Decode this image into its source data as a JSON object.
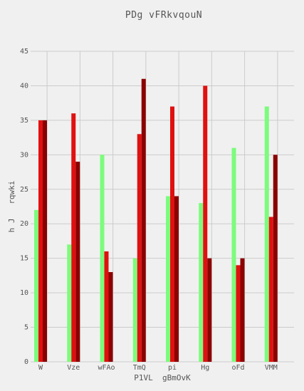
{
  "chart_data": {
    "type": "bar",
    "title": "PDg vFRkvqouN",
    "xlabel": "P1VL  gBmOvK",
    "ylabel": "h J   rqwki",
    "categories": [
      "W",
      "Vze",
      "wFAo",
      "TmQ",
      "pi",
      "Hg",
      "oFd",
      "VMM"
    ],
    "series": [
      {
        "color": "#7cfc7c",
        "values": [
          22,
          17,
          30,
          15,
          24,
          23,
          31,
          37
        ]
      },
      {
        "color": "#e01010",
        "values": [
          35,
          36,
          16,
          33,
          37,
          40,
          14,
          21
        ]
      },
      {
        "color": "#8b0000",
        "values": [
          35,
          29,
          13,
          41,
          24,
          15,
          15,
          30
        ]
      }
    ],
    "ylim": [
      0,
      45
    ],
    "yticks": [
      0,
      5,
      10,
      15,
      20,
      25,
      30,
      35,
      40,
      45
    ],
    "grid": true,
    "background": "#f0f0f0"
  }
}
